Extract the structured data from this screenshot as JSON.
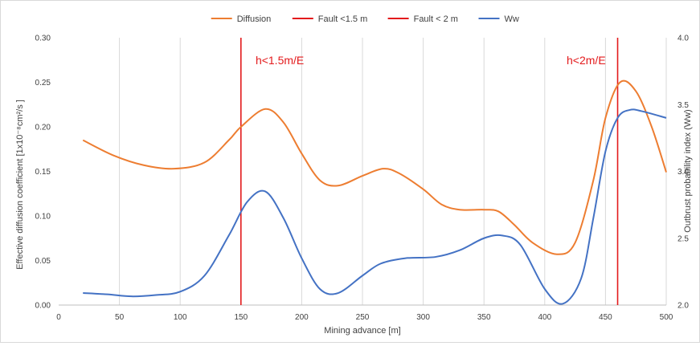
{
  "chart_data": {
    "type": "line",
    "title": "",
    "xlabel": "Mining advance [m]",
    "ylabel": "Effective diffusion coefficient [1x10⁻⁸cm²/s ]",
    "y2label": "Outbrust probability index (Ww)",
    "xlim": [
      0,
      500
    ],
    "ylim": [
      0,
      0.3
    ],
    "y2lim": [
      2.0,
      4.0
    ],
    "x_ticks": [
      "0",
      "50",
      "100",
      "150",
      "200",
      "250",
      "300",
      "350",
      "400",
      "450",
      "500"
    ],
    "y_ticks": [
      "0.00",
      "0.05",
      "0.10",
      "0.15",
      "0.20",
      "0.25",
      "0.30"
    ],
    "y2_ticks": [
      "2.0",
      "2.5",
      "3.0",
      "3.5",
      "4.0"
    ],
    "grid": "vertical",
    "legend_position": "top",
    "series": [
      {
        "name": "Diffusion",
        "axis": "left",
        "color": "#ed7d31",
        "points": [
          [
            20,
            0.185
          ],
          [
            45,
            0.168
          ],
          [
            70,
            0.157
          ],
          [
            95,
            0.153
          ],
          [
            120,
            0.16
          ],
          [
            140,
            0.185
          ],
          [
            150,
            0.2
          ],
          [
            170,
            0.22
          ],
          [
            185,
            0.205
          ],
          [
            200,
            0.17
          ],
          [
            215,
            0.14
          ],
          [
            230,
            0.134
          ],
          [
            250,
            0.145
          ],
          [
            267,
            0.153
          ],
          [
            280,
            0.148
          ],
          [
            300,
            0.13
          ],
          [
            315,
            0.113
          ],
          [
            330,
            0.107
          ],
          [
            350,
            0.107
          ],
          [
            362,
            0.105
          ],
          [
            375,
            0.09
          ],
          [
            390,
            0.07
          ],
          [
            410,
            0.057
          ],
          [
            425,
            0.07
          ],
          [
            440,
            0.14
          ],
          [
            450,
            0.21
          ],
          [
            462,
            0.25
          ],
          [
            475,
            0.24
          ],
          [
            488,
            0.2
          ],
          [
            500,
            0.149
          ]
        ]
      },
      {
        "name": "Fault <1.5 m",
        "axis": "left",
        "color": "#e31a1c",
        "points": [
          [
            150,
            0
          ],
          [
            150,
            0.3
          ]
        ]
      },
      {
        "name": "Fault < 2 m",
        "axis": "left",
        "color": "#e31a1c",
        "points": [
          [
            460,
            0
          ],
          [
            460,
            0.3
          ]
        ]
      },
      {
        "name": "Ww",
        "axis": "right",
        "color": "#4472c4",
        "points": [
          [
            20,
            2.09
          ],
          [
            40,
            2.08
          ],
          [
            60,
            2.065
          ],
          [
            80,
            2.075
          ],
          [
            100,
            2.1
          ],
          [
            120,
            2.22
          ],
          [
            140,
            2.52
          ],
          [
            155,
            2.77
          ],
          [
            170,
            2.85
          ],
          [
            185,
            2.65
          ],
          [
            200,
            2.35
          ],
          [
            215,
            2.12
          ],
          [
            230,
            2.09
          ],
          [
            250,
            2.22
          ],
          [
            265,
            2.31
          ],
          [
            285,
            2.35
          ],
          [
            310,
            2.36
          ],
          [
            330,
            2.41
          ],
          [
            350,
            2.5
          ],
          [
            365,
            2.52
          ],
          [
            380,
            2.45
          ],
          [
            400,
            2.12
          ],
          [
            415,
            2.01
          ],
          [
            430,
            2.2
          ],
          [
            440,
            2.65
          ],
          [
            450,
            3.15
          ],
          [
            460,
            3.4
          ],
          [
            470,
            3.46
          ],
          [
            480,
            3.45
          ],
          [
            500,
            3.4
          ]
        ]
      }
    ],
    "annotations": [
      {
        "text": "h<1.5m/E",
        "x": 162,
        "y": 0.275,
        "color": "#e31a1c"
      },
      {
        "text": "h<2m/E",
        "x": 418,
        "y": 0.275,
        "color": "#e31a1c"
      }
    ]
  }
}
